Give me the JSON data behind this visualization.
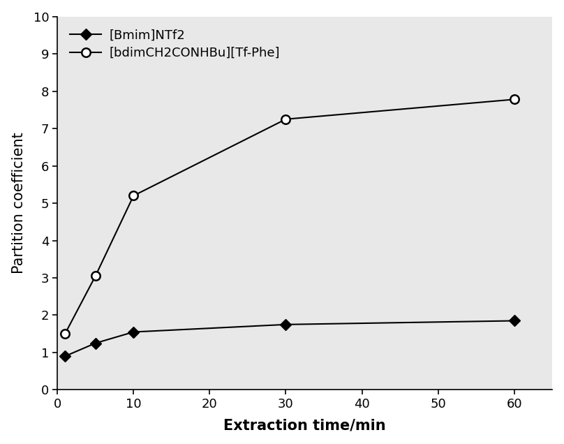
{
  "series1_label": "[Bmim]NTf2",
  "series2_label": "[bdimCH2CONHBu][Tf-Phe]",
  "series1_x": [
    1,
    5,
    10,
    30,
    60
  ],
  "series1_y": [
    0.9,
    1.25,
    1.55,
    1.75,
    1.85
  ],
  "series2_x": [
    1,
    5,
    10,
    30,
    60
  ],
  "series2_y": [
    1.5,
    3.05,
    5.2,
    7.25,
    7.78
  ],
  "xlabel": "Extraction time/min",
  "ylabel": "Partition coefficient",
  "xlim": [
    0,
    65
  ],
  "ylim": [
    0,
    10
  ],
  "xticks": [
    0,
    10,
    20,
    30,
    40,
    50,
    60
  ],
  "yticks": [
    0,
    1,
    2,
    3,
    4,
    5,
    6,
    7,
    8,
    9,
    10
  ],
  "series1_color": "#000000",
  "series2_color": "#000000",
  "background_color": "#ffffff",
  "plot_bg_color": "#e8e8e8",
  "legend_loc": "upper left",
  "label_fontsize": 15,
  "tick_fontsize": 13,
  "legend_fontsize": 13
}
